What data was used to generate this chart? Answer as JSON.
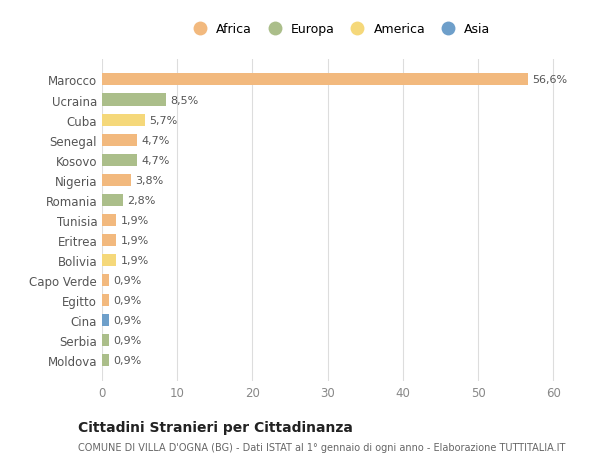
{
  "countries": [
    "Marocco",
    "Ucraina",
    "Cuba",
    "Senegal",
    "Kosovo",
    "Nigeria",
    "Romania",
    "Tunisia",
    "Eritrea",
    "Bolivia",
    "Capo Verde",
    "Egitto",
    "Cina",
    "Serbia",
    "Moldova"
  ],
  "values": [
    56.6,
    8.5,
    5.7,
    4.7,
    4.7,
    3.8,
    2.8,
    1.9,
    1.9,
    1.9,
    0.9,
    0.9,
    0.9,
    0.9,
    0.9
  ],
  "labels": [
    "56,6%",
    "8,5%",
    "5,7%",
    "4,7%",
    "4,7%",
    "3,8%",
    "2,8%",
    "1,9%",
    "1,9%",
    "1,9%",
    "0,9%",
    "0,9%",
    "0,9%",
    "0,9%",
    "0,9%"
  ],
  "continents": [
    "Africa",
    "Europa",
    "America",
    "Africa",
    "Europa",
    "Africa",
    "Europa",
    "Africa",
    "Africa",
    "America",
    "Africa",
    "Africa",
    "Asia",
    "Europa",
    "Europa"
  ],
  "continent_colors": {
    "Africa": "#F2B97E",
    "Europa": "#ABBE8A",
    "America": "#F5D87A",
    "Asia": "#6E9FCA"
  },
  "legend_order": [
    "Africa",
    "Europa",
    "America",
    "Asia"
  ],
  "title": "Cittadini Stranieri per Cittadinanza",
  "subtitle": "COMUNE DI VILLA D'OGNA (BG) - Dati ISTAT al 1° gennaio di ogni anno - Elaborazione TUTTITALIA.IT",
  "xlim": [
    0,
    63
  ],
  "xticks": [
    0,
    10,
    20,
    30,
    40,
    50,
    60
  ],
  "background_color": "#ffffff",
  "grid_color": "#dddddd",
  "bar_height": 0.6
}
